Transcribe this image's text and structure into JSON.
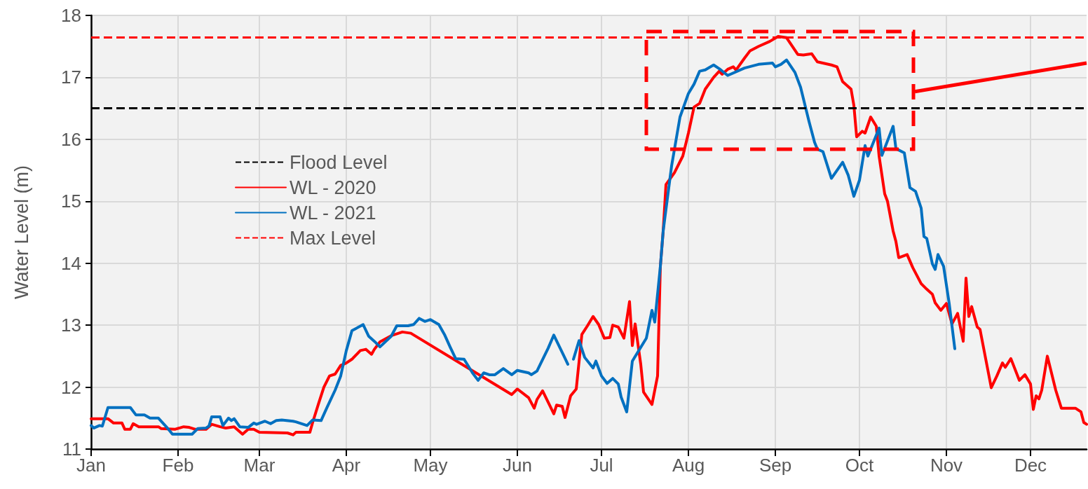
{
  "chart_data": {
    "type": "line",
    "ylabel": "Water Level (m)",
    "xlim": [
      "--01-01",
      "--12-21"
    ],
    "xticks": [
      {
        "value": "--01-01",
        "label": "Jan"
      },
      {
        "value": "--02-01",
        "label": "Feb"
      },
      {
        "value": "--03-01",
        "label": "Mar"
      },
      {
        "value": "--04-01",
        "label": "Apr"
      },
      {
        "value": "--05-01",
        "label": "May"
      },
      {
        "value": "--06-01",
        "label": "Jun"
      },
      {
        "value": "--07-01",
        "label": "Jul"
      },
      {
        "value": "--08-01",
        "label": "Aug"
      },
      {
        "value": "--09-01",
        "label": "Sep"
      },
      {
        "value": "--10-01",
        "label": "Oct"
      },
      {
        "value": "--11-01",
        "label": "Nov"
      },
      {
        "value": "--12-01",
        "label": "Dec"
      }
    ],
    "ylim": [
      11,
      18
    ],
    "yticks": [
      11,
      12,
      13,
      14,
      15,
      16,
      17,
      18
    ],
    "grid": true,
    "legend": "center left",
    "marker": "none",
    "line_style": "solid",
    "series": [
      {
        "name": "WL - 2020",
        "color": "#ff0000",
        "x": [
          "--01-01",
          "--01-07",
          "--01-09",
          "--01-12",
          "--01-13",
          "--01-15",
          "--01-16",
          "--01-18",
          "--01-25",
          "--01-26",
          "--01-31",
          "--02-03",
          "--02-05",
          "--02-07",
          "--02-11",
          "--02-13",
          "--02-16",
          "--02-18",
          "--02-21",
          "--02-24",
          "--02-26",
          "--02-28",
          "--03-01",
          "--03-11",
          "--03-13",
          "--03-14",
          "--03-19",
          "--03-20",
          "--03-22",
          "--03-24",
          "--03-26",
          "--03-28",
          "--03-30",
          "--04-01",
          "--04-03",
          "--04-06",
          "--04-08",
          "--04-10",
          "--04-11",
          "--04-13",
          "--04-17",
          "--04-21",
          "--04-24",
          "--05-30",
          "--06-01",
          "--06-05",
          "--06-07",
          "--06-08",
          "--06-10",
          "--06-14",
          "--06-15",
          "--06-17",
          "--06-18",
          "--06-20",
          "--06-22",
          "--06-24",
          "--06-26",
          "--06-28",
          "--06-30",
          "--07-02",
          "--07-04",
          "--07-05",
          "--07-07",
          "--07-09",
          "--07-11",
          "--07-12",
          "--07-13",
          "--07-15",
          "--07-16",
          "--07-19",
          "--07-21",
          "--07-22",
          "--07-23",
          "--07-24",
          "--07-27",
          "--07-30",
          "--08-01",
          "--08-03",
          "--08-05",
          "--08-07",
          "--08-10",
          "--08-12",
          "--08-13",
          "--08-15",
          "--08-17",
          "--08-18",
          "--08-21",
          "--08-23",
          "--08-26",
          "--08-30",
          "--09-02",
          "--09-05",
          "--09-09",
          "--09-11",
          "--09-14",
          "--09-16",
          "--09-21",
          "--09-23",
          "--09-25",
          "--09-28",
          "--09-29",
          "--09-30",
          "--10-02",
          "--10-03",
          "--10-05",
          "--10-07",
          "--10-08",
          "--10-10",
          "--10-11",
          "--10-13",
          "--10-14",
          "--10-15",
          "--10-18",
          "--10-20",
          "--10-23",
          "--10-25",
          "--10-27",
          "--10-28",
          "--10-30",
          "--11-01",
          "--11-03",
          "--11-05",
          "--11-07",
          "--11-08",
          "--11-09",
          "--11-10",
          "--11-12",
          "--11-13",
          "--11-17",
          "--11-19",
          "--11-21",
          "--11-22",
          "--11-24",
          "--11-27",
          "--11-29",
          "--12-01",
          "--12-02",
          "--12-03",
          "--12-04",
          "--12-05",
          "--12-07",
          "--12-10",
          "--12-12",
          "--12-17",
          "--12-19",
          "--12-20",
          "--12-21"
        ],
        "values": [
          11.49,
          11.49,
          11.42,
          11.42,
          11.32,
          11.32,
          11.41,
          11.36,
          11.36,
          11.33,
          11.32,
          11.36,
          11.35,
          11.32,
          11.32,
          11.4,
          11.36,
          11.34,
          11.36,
          11.24,
          11.32,
          11.32,
          11.27,
          11.26,
          11.23,
          11.27,
          11.27,
          11.43,
          11.72,
          12.0,
          12.18,
          12.21,
          12.35,
          12.39,
          12.45,
          12.59,
          12.61,
          12.53,
          12.61,
          12.73,
          12.83,
          12.89,
          12.87,
          11.88,
          11.97,
          11.83,
          11.66,
          11.8,
          11.94,
          11.57,
          11.71,
          11.69,
          11.51,
          11.86,
          11.97,
          12.85,
          12.99,
          13.14,
          13.01,
          12.79,
          12.8,
          13.0,
          12.97,
          12.79,
          13.38,
          12.67,
          13.02,
          12.37,
          11.92,
          11.72,
          12.18,
          13.95,
          14.52,
          15.27,
          15.46,
          15.73,
          16.1,
          16.52,
          16.58,
          16.81,
          17.0,
          17.1,
          17.05,
          17.13,
          17.17,
          17.12,
          17.31,
          17.43,
          17.5,
          17.58,
          17.66,
          17.64,
          17.37,
          17.36,
          17.38,
          17.25,
          17.2,
          17.17,
          16.93,
          16.81,
          16.55,
          16.04,
          16.13,
          16.1,
          16.36,
          16.21,
          15.73,
          15.12,
          15.0,
          14.52,
          14.35,
          14.09,
          14.14,
          13.93,
          13.67,
          13.58,
          13.5,
          13.36,
          13.24,
          13.35,
          13.02,
          13.19,
          12.74,
          13.76,
          13.14,
          13.3,
          12.97,
          12.93,
          11.99,
          12.18,
          12.39,
          12.32,
          12.46,
          12.11,
          12.2,
          12.05,
          11.64,
          11.86,
          11.81,
          11.95,
          12.5,
          11.95,
          11.66,
          11.66,
          11.6,
          11.43,
          11.4
        ]
      },
      {
        "name": "WL - 2021",
        "color": "#0070c0",
        "x": [
          "--01-01",
          "--01-02",
          "--01-04",
          "--01-05",
          "--01-07",
          "--01-15",
          "--01-17",
          "--01-20",
          "--01-22",
          "--01-25",
          "--01-28",
          "--01-30",
          "--02-06",
          "--02-08",
          "--02-11",
          "--02-12",
          "--02-13",
          "--02-16",
          "--02-17",
          "--02-19",
          "--02-20",
          "--02-21",
          "--02-23",
          "--02-26",
          "--02-28",
          "--02-29",
          "--03-03",
          "--03-05",
          "--03-07",
          "--03-09",
          "--03-13",
          "--03-14",
          "--03-18",
          "--03-20",
          "--03-23",
          "--03-25",
          "--03-28",
          "--03-30",
          "--04-01",
          "--04-03",
          "--04-07",
          "--04-09",
          "--04-11",
          "--04-13",
          "--04-17",
          "--04-19",
          "--04-23",
          "--04-25",
          "--04-27",
          "--04-29",
          "--05-01",
          "--05-04",
          "--05-06",
          "--05-08",
          "--05-10",
          "--05-13",
          "--05-16",
          "--05-18",
          "--05-20",
          "--05-22",
          "--05-24",
          "--05-27",
          "--05-30",
          "--06-01",
          "--06-05",
          "--06-06",
          "--06-08",
          "--06-12",
          "--06-14",
          "--06-17",
          "--06-19",
          "--06-20",
          "--06-21",
          "--06-23",
          "--06-25",
          "--06-28",
          "--06-29",
          "--07-01",
          "--07-03",
          "--07-05",
          "--07-07",
          "--07-08",
          "--07-10",
          "--07-12",
          "--07-17",
          "--07-19",
          "--07-20",
          "--07-22",
          "--07-23",
          "--07-26",
          "--07-29",
          "--08-01",
          "--08-03",
          "--08-05",
          "--08-07",
          "--08-10",
          "--08-12",
          "--08-15",
          "--08-21",
          "--08-26",
          "--08-31",
          "--09-01",
          "--09-03",
          "--09-05",
          "--09-08",
          "--09-10",
          "--09-13",
          "--09-15",
          "--09-16",
          "--09-18",
          "--09-21",
          "--09-25",
          "--09-27",
          "--09-29",
          "--10-01",
          "--10-03",
          "--10-04",
          "--10-08",
          "--10-09",
          "--10-13",
          "--10-14",
          "--10-17",
          "--10-19",
          "--10-21",
          "--10-23",
          "--10-24",
          "--10-25",
          "--10-27",
          "--10-28",
          "--10-29",
          "--10-31",
          "--11-02",
          "--11-04"
        ],
        "values": [
          11.38,
          11.34,
          11.38,
          11.37,
          11.67,
          11.67,
          11.55,
          11.55,
          11.5,
          11.5,
          11.35,
          11.24,
          11.24,
          11.33,
          11.34,
          11.37,
          11.52,
          11.52,
          11.38,
          11.5,
          11.46,
          11.49,
          11.36,
          11.35,
          11.42,
          11.4,
          11.45,
          11.41,
          11.46,
          11.47,
          11.45,
          11.44,
          11.38,
          11.47,
          11.46,
          11.66,
          11.95,
          12.18,
          12.59,
          12.91,
          13.01,
          12.82,
          12.74,
          12.65,
          12.82,
          12.99,
          12.99,
          13.01,
          13.11,
          13.06,
          13.09,
          13.01,
          12.85,
          12.65,
          12.46,
          12.45,
          12.23,
          12.11,
          12.23,
          12.2,
          12.2,
          12.3,
          12.2,
          12.27,
          12.23,
          12.2,
          12.26,
          12.63,
          12.84,
          12.56,
          12.37,
          null,
          12.45,
          12.75,
          12.48,
          12.31,
          12.42,
          12.18,
          12.06,
          12.14,
          12.05,
          11.84,
          11.6,
          12.42,
          12.79,
          13.24,
          13.05,
          13.95,
          14.52,
          15.57,
          16.36,
          16.74,
          16.89,
          17.1,
          17.12,
          17.2,
          17.14,
          17.03,
          17.15,
          17.21,
          17.23,
          17.17,
          17.21,
          17.28,
          17.08,
          16.84,
          16.29,
          15.95,
          15.84,
          15.8,
          15.37,
          15.63,
          15.42,
          15.08,
          15.34,
          15.9,
          15.73,
          16.18,
          15.74,
          16.21,
          15.85,
          15.78,
          15.22,
          15.16,
          14.89,
          14.43,
          14.4,
          13.99,
          13.9,
          14.14,
          13.95,
          13.35,
          12.62
        ]
      }
    ],
    "ref_lines": [
      {
        "axis": "y",
        "value": 16.5,
        "label": "Flood Level",
        "color": "#000000",
        "line_style": "dashed"
      },
      {
        "axis": "y",
        "value": 17.65,
        "label": "Max Level",
        "color": "#ff0000",
        "line_style": "dashed"
      }
    ]
  }
}
